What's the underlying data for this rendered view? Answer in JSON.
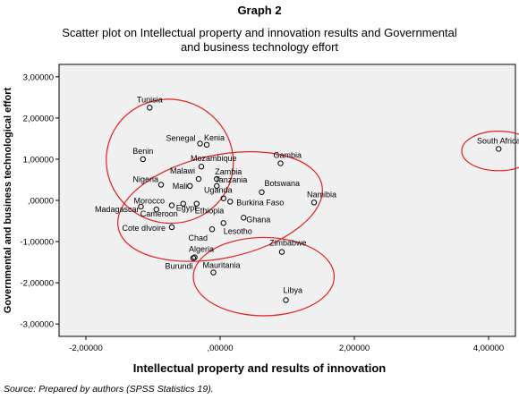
{
  "header": {
    "graph_label": "Graph 2",
    "title_line1": "Scatter plot on Intellectual property and innovation results and Governmental",
    "title_line2": "and business technology effort"
  },
  "footer": {
    "source": "Source: Prepared by authors (SPSS Statistics 19)."
  },
  "colors": {
    "plot_background": "#f0f0f0",
    "ellipse": "#e0201f",
    "point": "#000000"
  },
  "chart_data": {
    "type": "scatter",
    "xlabel": "Intellectual  property and results of innovation",
    "ylabel": "Governmental and business technological effort",
    "xlim": [
      -2.4,
      4.4
    ],
    "ylim": [
      -3.3,
      3.3
    ],
    "grid": false,
    "xticks": [
      {
        "value": -2,
        "label": "-2,00000"
      },
      {
        "value": 0,
        "label": ",00000"
      },
      {
        "value": 2,
        "label": "2,00000"
      },
      {
        "value": 4,
        "label": "4,00000"
      }
    ],
    "yticks": [
      {
        "value": 3,
        "label": "3,00000"
      },
      {
        "value": 2,
        "label": "2,00000"
      },
      {
        "value": 1,
        "label": "1,00000"
      },
      {
        "value": 0,
        "label": ",00000"
      },
      {
        "value": -1,
        "label": "-1,00000"
      },
      {
        "value": -2,
        "label": "-2,00000"
      },
      {
        "value": -3,
        "label": "-3,00000"
      }
    ],
    "points": [
      {
        "label": "Tunisia",
        "x": -1.05,
        "y": 2.25,
        "anchor": "middle",
        "ldx": 0,
        "ldy": -6
      },
      {
        "label": "South Africa",
        "x": 4.15,
        "y": 1.25,
        "anchor": "middle",
        "ldx": 0,
        "ldy": -6
      },
      {
        "label": "Senegal",
        "x": -0.3,
        "y": 1.38,
        "anchor": "end",
        "ldx": -5,
        "ldy": -3
      },
      {
        "label": "Kenia",
        "x": -0.2,
        "y": 1.35,
        "anchor": "start",
        "ldx": -3,
        "ldy": -5
      },
      {
        "label": "Benin",
        "x": -1.15,
        "y": 1.0,
        "anchor": "middle",
        "ldx": 0,
        "ldy": -6
      },
      {
        "label": "Gambia",
        "x": 0.9,
        "y": 0.9,
        "anchor": "start",
        "ldx": -8,
        "ldy": -6
      },
      {
        "label": "Mozambique",
        "x": -0.28,
        "y": 0.82,
        "anchor": "start",
        "ldx": -12,
        "ldy": -6
      },
      {
        "label": "Malawi",
        "x": -0.32,
        "y": 0.52,
        "anchor": "end",
        "ldx": -4,
        "ldy": -6
      },
      {
        "label": "Zambia",
        "x": -0.05,
        "y": 0.52,
        "anchor": "start",
        "ldx": -2,
        "ldy": -5
      },
      {
        "label": "Tanzania",
        "x": -0.05,
        "y": 0.35,
        "anchor": "start",
        "ldx": -2,
        "ldy": -4
      },
      {
        "label": "Nigeria",
        "x": -0.88,
        "y": 0.38,
        "anchor": "end",
        "ldx": -3,
        "ldy": -3
      },
      {
        "label": "Mali",
        "x": -0.45,
        "y": 0.35,
        "anchor": "end",
        "ldx": -3,
        "ldy": 3
      },
      {
        "label": "Botswana",
        "x": 0.62,
        "y": 0.2,
        "anchor": "start",
        "ldx": 3,
        "ldy": -7
      },
      {
        "label": "Namibia",
        "x": 1.4,
        "y": -0.05,
        "anchor": "start",
        "ldx": -8,
        "ldy": -6
      },
      {
        "label": "Uganda",
        "x": 0.05,
        "y": 0.05,
        "anchor": "middle",
        "ldx": -6,
        "ldy": -6
      },
      {
        "label": "Morocco",
        "x": -0.72,
        "y": -0.12,
        "anchor": "end",
        "ldx": -8,
        "ldy": -2
      },
      {
        "label": "Burkina Faso",
        "x": 0.15,
        "y": -0.03,
        "anchor": "start",
        "ldx": 7,
        "ldy": 4
      },
      {
        "label": "Egypt",
        "x": -0.55,
        "y": -0.08,
        "anchor": "start",
        "ldx": -8,
        "ldy": 8
      },
      {
        "label": "Madagascar",
        "x": -1.18,
        "y": -0.15,
        "anchor": "end",
        "ldx": -2,
        "ldy": 6
      },
      {
        "label": "Cameroon",
        "x": -0.95,
        "y": -0.22,
        "anchor": "start",
        "ldx": -18,
        "ldy": 8
      },
      {
        "label": "Ethiopia",
        "x": -0.35,
        "y": -0.08,
        "anchor": "start",
        "ldx": -2,
        "ldy": 11
      },
      {
        "label": "Ghana",
        "x": 0.35,
        "y": -0.42,
        "anchor": "start",
        "ldx": 3,
        "ldy": 5
      },
      {
        "label": "Cote dIvoire",
        "x": -0.72,
        "y": -0.65,
        "anchor": "end",
        "ldx": -7,
        "ldy": 4
      },
      {
        "label": "Lesotho",
        "x": 0.05,
        "y": -0.55,
        "anchor": "start",
        "ldx": 0,
        "ldy": 12
      },
      {
        "label": "Chad",
        "x": -0.12,
        "y": -0.7,
        "anchor": "end",
        "ldx": -5,
        "ldy": 13
      },
      {
        "label": "Zimbabwe",
        "x": 0.92,
        "y": -1.25,
        "anchor": "start",
        "ldx": -14,
        "ldy": -7
      },
      {
        "label": "Algeria",
        "x": -0.4,
        "y": -1.4,
        "anchor": "start",
        "ldx": -5,
        "ldy": -7
      },
      {
        "label": "Burundi",
        "x": -0.38,
        "y": -1.38,
        "anchor": "end",
        "ldx": -2,
        "ldy": 13
      },
      {
        "label": "Mauritania",
        "x": -0.1,
        "y": -1.75,
        "anchor": "start",
        "ldx": -12,
        "ldy": -5
      },
      {
        "label": "Libya",
        "x": 0.98,
        "y": -2.42,
        "anchor": "start",
        "ldx": -3,
        "ldy": -8
      }
    ],
    "ellipses": [
      {
        "cx": -0.75,
        "cy": 0.95,
        "rx": 0.95,
        "ry": 1.5,
        "rotate": 20
      },
      {
        "cx": 0.0,
        "cy": -0.15,
        "rx": 1.55,
        "ry": 1.25,
        "rotate": -12
      },
      {
        "cx": 0.65,
        "cy": -1.85,
        "rx": 1.05,
        "ry": 0.95,
        "rotate": 0
      },
      {
        "cx": 4.15,
        "cy": 1.2,
        "rx": 0.55,
        "ry": 0.48,
        "rotate": 0
      }
    ]
  }
}
